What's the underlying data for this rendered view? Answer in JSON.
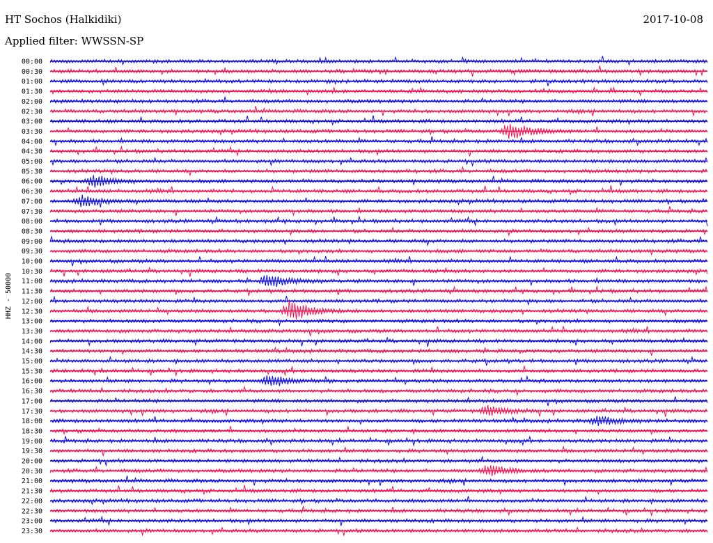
{
  "header": {
    "station": "HT Sochos (Halkidiki)",
    "date": "2017-10-08",
    "filter": "Applied filter: WWSSN-SP"
  },
  "colors": {
    "even_line": "#0a0ae0",
    "odd_line": "#ee1150",
    "text": "#000000"
  },
  "chart_data": {
    "type": "line",
    "title": "HT Sochos (Halkidiki)",
    "date": "2017-10-08",
    "filter": "WWSSN-SP",
    "ylabel": "HHZ - 50000",
    "row_interval_minutes": 30,
    "y_tick_labels": [
      "00:00",
      "00:30",
      "01:00",
      "01:30",
      "02:00",
      "02:30",
      "03:00",
      "03:30",
      "04:00",
      "04:30",
      "05:00",
      "05:30",
      "06:00",
      "06:30",
      "07:00",
      "07:30",
      "08:00",
      "08:30",
      "09:00",
      "09:30",
      "10:00",
      "10:30",
      "11:00",
      "11:30",
      "12:00",
      "12:30",
      "13:00",
      "13:30",
      "14:00",
      "14:30",
      "15:00",
      "15:30",
      "16:00",
      "16:30",
      "17:00",
      "17:30",
      "18:00",
      "18:30",
      "19:00",
      "19:30",
      "20:00",
      "20:30",
      "21:00",
      "21:30",
      "22:00",
      "22:30",
      "23:00",
      "23:30"
    ],
    "color_cycle": [
      "blue",
      "red"
    ],
    "grid": false,
    "legend": "none",
    "events": [
      {
        "start": "03:30",
        "minute": 21,
        "amplitude": 0.9
      },
      {
        "start": "12:30",
        "minute": 11,
        "amplitude": 1.0
      },
      {
        "start": "11:00",
        "minute": 10,
        "amplitude": 0.7
      },
      {
        "start": "16:00",
        "minute": 10,
        "amplitude": 0.6
      },
      {
        "start": "06:00",
        "minute": 2,
        "amplitude": 0.55
      },
      {
        "start": "07:00",
        "minute": 1.5,
        "amplitude": 0.55
      },
      {
        "start": "17:30",
        "minute": 20,
        "amplitude": 0.5
      },
      {
        "start": "20:30",
        "minute": 20,
        "amplitude": 0.55
      },
      {
        "start": "18:00",
        "minute": 25,
        "amplitude": 0.45
      }
    ]
  }
}
